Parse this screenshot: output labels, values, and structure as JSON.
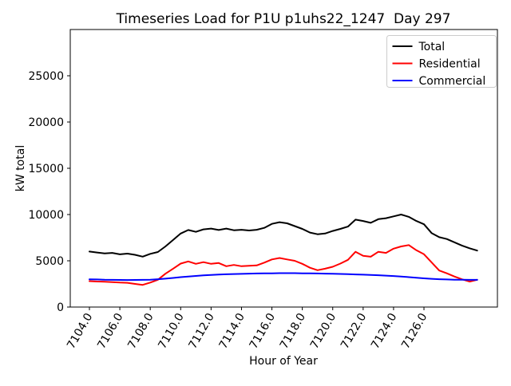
{
  "figure": {
    "background": "#ffffff",
    "frame_color": "#000000"
  },
  "chart_data": {
    "type": "line",
    "title": "Timeseries Load for P1U p1uhs22_1247  Day 297",
    "xlabel": "Hour of Year",
    "ylabel": "kW total",
    "xlim": [
      7102.74,
      7130.83
    ],
    "ylim": [
      0,
      30000
    ],
    "grid": false,
    "x_tick_rotation": 60,
    "xticks": [
      7104,
      7106,
      7108,
      7110,
      7112,
      7114,
      7116,
      7118,
      7120,
      7122,
      7124,
      7126
    ],
    "xtick_labels": [
      "7104.0",
      "7106.0",
      "7108.0",
      "7110.0",
      "7112.0",
      "7114.0",
      "7116.0",
      "7118.0",
      "7120.0",
      "7122.0",
      "7124.0",
      "7126.0"
    ],
    "yticks": [
      0,
      5000,
      10000,
      15000,
      20000,
      25000
    ],
    "ytick_labels": [
      "0",
      "5000",
      "10000",
      "15000",
      "20000",
      "25000"
    ],
    "legend": {
      "position": "upper-right",
      "border_color": "#cccccc",
      "background": "#ffffff"
    },
    "x": [
      7104.0,
      7104.5,
      7105.0,
      7105.5,
      7106.0,
      7106.5,
      7107.0,
      7107.5,
      7108.0,
      7108.5,
      7109.0,
      7109.5,
      7110.0,
      7110.5,
      7111.0,
      7111.5,
      7112.0,
      7112.5,
      7113.0,
      7113.5,
      7114.0,
      7114.5,
      7115.0,
      7115.5,
      7116.0,
      7116.5,
      7117.0,
      7117.5,
      7118.0,
      7118.5,
      7119.0,
      7119.5,
      7120.0,
      7120.5,
      7121.0,
      7121.5,
      7122.0,
      7122.5,
      7123.0,
      7123.5,
      7124.0,
      7124.5,
      7125.0,
      7125.5,
      7126.0,
      7126.5,
      7127.0,
      7127.5,
      7128.0,
      7128.5,
      7129.0,
      7129.5
    ],
    "series": [
      {
        "name": "Total",
        "color": "#000000",
        "values": [
          6000,
          5900,
          5800,
          5850,
          5700,
          5780,
          5650,
          5450,
          5750,
          5950,
          6550,
          7250,
          7950,
          8330,
          8130,
          8400,
          8480,
          8330,
          8480,
          8300,
          8350,
          8280,
          8350,
          8560,
          8990,
          9170,
          9050,
          8750,
          8450,
          8050,
          7870,
          7950,
          8220,
          8450,
          8700,
          9450,
          9300,
          9100,
          9500,
          9600,
          9800,
          10000,
          9750,
          9300,
          8950,
          8000,
          7550,
          7350,
          7000,
          6650,
          6350,
          6100
        ]
      },
      {
        "name": "Residential",
        "color": "#ff0000",
        "values": [
          2800,
          2760,
          2740,
          2700,
          2650,
          2620,
          2500,
          2400,
          2650,
          2950,
          3600,
          4150,
          4700,
          4930,
          4670,
          4850,
          4670,
          4760,
          4410,
          4550,
          4410,
          4460,
          4500,
          4800,
          5150,
          5300,
          5150,
          5000,
          4670,
          4250,
          3980,
          4150,
          4350,
          4700,
          5100,
          5970,
          5540,
          5440,
          5970,
          5850,
          6310,
          6550,
          6700,
          6140,
          5710,
          4840,
          3950,
          3650,
          3300,
          3000,
          2750,
          2950
        ]
      },
      {
        "name": "Commercial",
        "color": "#0000ff",
        "values": [
          3000,
          2980,
          2950,
          2940,
          2930,
          2920,
          2930,
          2940,
          2960,
          3010,
          3070,
          3150,
          3230,
          3300,
          3360,
          3420,
          3470,
          3510,
          3540,
          3570,
          3590,
          3610,
          3630,
          3640,
          3650,
          3660,
          3660,
          3660,
          3650,
          3640,
          3630,
          3610,
          3600,
          3580,
          3550,
          3530,
          3500,
          3470,
          3440,
          3400,
          3350,
          3300,
          3230,
          3160,
          3100,
          3050,
          3010,
          2980,
          2960,
          2950,
          2940,
          2940
        ]
      }
    ]
  }
}
